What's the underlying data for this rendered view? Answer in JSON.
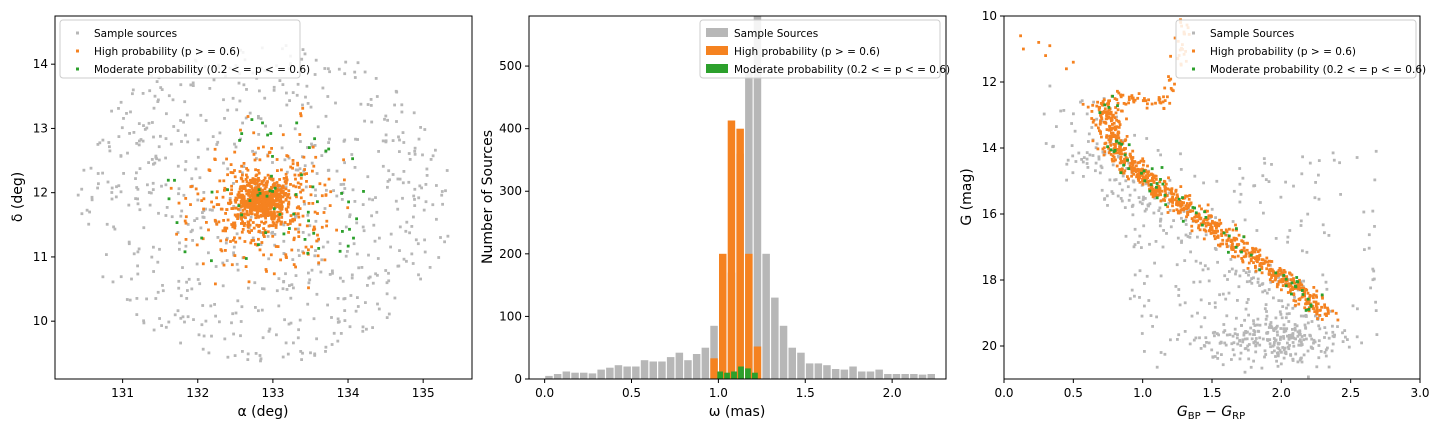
{
  "colors": {
    "grey": "#b7b7b7",
    "orange": "#f58220",
    "green": "#2ca02c",
    "axis": "#000000",
    "legend_border": "#cccccc"
  },
  "chart_data": [
    {
      "type": "scatter",
      "xlabel": "α (deg)",
      "ylabel": "δ (deg)",
      "xlim": [
        130.1,
        135.65
      ],
      "ylim": [
        9.1,
        14.75
      ],
      "xticks": [
        131,
        132,
        133,
        134,
        135
      ],
      "yticks": [
        10,
        11,
        12,
        13,
        14
      ],
      "grid": false,
      "legend_position": "top-left",
      "legend": [
        "Sample sources",
        "High probability (p > = 0.6)",
        "Moderate probability (0.2 < = p < = 0.6)"
      ],
      "series": [
        {
          "name": "Sample sources",
          "color": "#b7b7b7",
          "center": [
            132.9,
            11.85
          ],
          "spread": [
            2.5,
            2.5
          ],
          "count": 700,
          "shape": "disk"
        },
        {
          "name": "High probability (p > = 0.6)",
          "color": "#f58220",
          "center": [
            132.85,
            11.85
          ],
          "spread": [
            0.45,
            0.45
          ],
          "count": 900,
          "shape": "core"
        },
        {
          "name": "Moderate probability (0.2 < = p < = 0.6)",
          "color": "#2ca02c",
          "center": [
            132.9,
            11.8
          ],
          "spread": [
            1.4,
            1.4
          ],
          "count": 60,
          "shape": "disk"
        }
      ]
    },
    {
      "type": "bar",
      "xlabel": "ω (mas)",
      "ylabel": "Number of Sources",
      "xlim": [
        -0.09,
        2.31
      ],
      "ylim": [
        0,
        580
      ],
      "xticks": [
        0.0,
        0.5,
        1.0,
        1.5,
        2.0
      ],
      "xtick_labels": [
        "0.0",
        "0.5",
        "1.0",
        "1.5",
        "2.0"
      ],
      "yticks": [
        0,
        100,
        200,
        300,
        400,
        500
      ],
      "grid": false,
      "legend_position": "top-right",
      "legend": [
        "Sample Sources",
        "High probability (p > = 0.6)",
        "Moderate probability (0.2 < = p < = 0.6)"
      ],
      "bin_width": 0.05,
      "series": [
        {
          "name": "Sample Sources",
          "color": "#b7b7b7",
          "x_start": 0.0,
          "values": [
            5,
            8,
            12,
            10,
            10,
            9,
            15,
            18,
            22,
            20,
            20,
            30,
            28,
            28,
            35,
            42,
            30,
            40,
            50,
            85,
            93,
            170,
            360,
            490,
            580,
            200,
            130,
            85,
            50,
            42,
            25,
            25,
            22,
            16,
            15,
            20,
            12,
            12,
            15,
            8,
            8,
            8,
            8,
            7,
            8
          ]
        },
        {
          "name": "High probability (p > = 0.6)",
          "color": "#f58220",
          "x_start": 0.95,
          "values": [
            33,
            200,
            413,
            400,
            200,
            52
          ]
        },
        {
          "name": "Moderate probability (0.2 < = p < = 0.6)",
          "color": "#2ca02c",
          "x_start": 0.99,
          "bin_width": 0.04,
          "values": [
            12,
            10,
            12,
            20,
            17,
            10
          ]
        }
      ]
    },
    {
      "type": "scatter",
      "xlabel": "G_BP − G_RP",
      "ylabel": "G (mag)",
      "xlim": [
        0.0,
        3.0
      ],
      "ylim": [
        21.0,
        10.0
      ],
      "y_inverted": true,
      "xticks": [
        0.0,
        0.5,
        1.0,
        1.5,
        2.0,
        2.5,
        3.0
      ],
      "xtick_labels": [
        "0.0",
        "0.5",
        "1.0",
        "1.5",
        "2.0",
        "2.5",
        "3.0"
      ],
      "yticks": [
        10,
        12,
        14,
        16,
        18,
        20
      ],
      "grid": false,
      "legend_position": "top-right",
      "legend": [
        "Sample Sources",
        "High probability (p > = 0.6)",
        "Moderate probability (0.2 < = p < = 0.6)"
      ],
      "main_sequence": [
        [
          0.72,
          12.6
        ],
        [
          0.75,
          13.3
        ],
        [
          0.8,
          13.9
        ],
        [
          0.9,
          14.5
        ],
        [
          1.05,
          15.0
        ],
        [
          1.2,
          15.5
        ],
        [
          1.4,
          16.1
        ],
        [
          1.6,
          16.7
        ],
        [
          1.8,
          17.3
        ],
        [
          2.0,
          17.9
        ],
        [
          2.15,
          18.4
        ],
        [
          2.3,
          19.0
        ]
      ],
      "giant_branch": [
        [
          0.75,
          12.6
        ],
        [
          0.85,
          12.4
        ],
        [
          0.95,
          12.5
        ],
        [
          1.05,
          12.7
        ],
        [
          1.15,
          12.6
        ],
        [
          1.2,
          12.2
        ],
        [
          1.25,
          11.5
        ],
        [
          1.28,
          10.8
        ],
        [
          1.3,
          10.2
        ]
      ],
      "series": [
        {
          "name": "Sample Sources",
          "color": "#b7b7b7",
          "count": 650
        },
        {
          "name": "High probability (p > = 0.6)",
          "color": "#f58220",
          "count": 900
        },
        {
          "name": "Moderate probability (0.2 < = p < = 0.6)",
          "color": "#2ca02c",
          "count": 70
        }
      ]
    }
  ]
}
